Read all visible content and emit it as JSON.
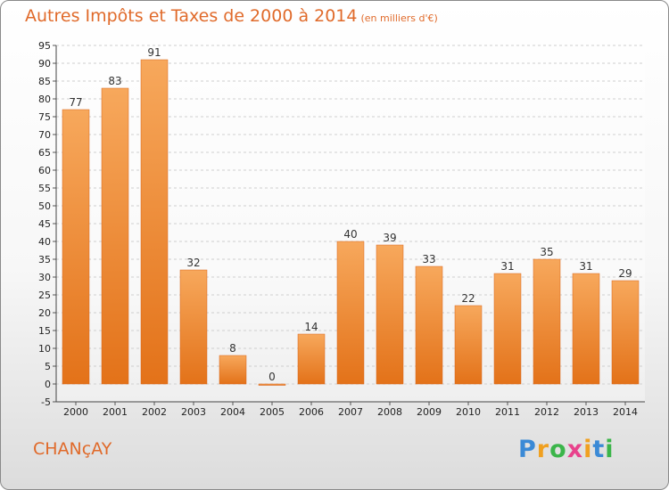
{
  "chart_data": {
    "type": "bar",
    "title": "Autres Impôts et Taxes de 2000 à 2014",
    "subtitle": "(en milliers d'€)",
    "categories": [
      "2000",
      "2001",
      "2002",
      "2003",
      "2004",
      "2005",
      "2006",
      "2007",
      "2008",
      "2009",
      "2010",
      "2011",
      "2012",
      "2013",
      "2014"
    ],
    "values": [
      77,
      83,
      91,
      32,
      8,
      0,
      14,
      40,
      39,
      33,
      22,
      31,
      35,
      31,
      29
    ],
    "xlabel": "",
    "ylabel": "",
    "ylim": [
      -5,
      95
    ],
    "yticks": [
      -5,
      0,
      5,
      10,
      15,
      20,
      25,
      30,
      35,
      40,
      45,
      50,
      55,
      60,
      65,
      70,
      75,
      80,
      85,
      90,
      95
    ],
    "grid": true,
    "bar_color": "#f08a2c",
    "bar_color_light": "#f7a85c",
    "bar_color_dark": "#e37219"
  },
  "commune": "CHANçAY",
  "logo": {
    "letters": [
      "P",
      "r",
      "o",
      "x",
      "i",
      "t",
      "i"
    ],
    "colors": [
      "#3b8ad6",
      "#f0a020",
      "#3bb54a",
      "#e8428c",
      "#f0a020",
      "#3b8ad6",
      "#3bb54a"
    ]
  }
}
